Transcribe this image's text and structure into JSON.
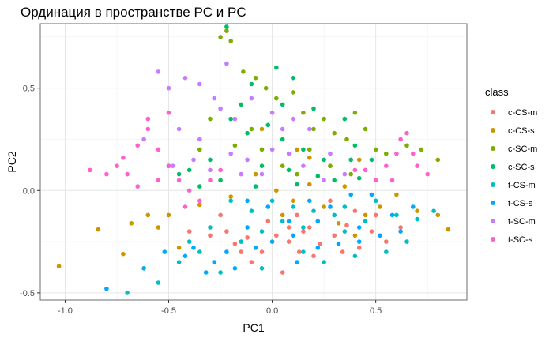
{
  "chart_data": {
    "type": "scatter",
    "title": "Ординация в пространстве PC и PC",
    "xlabel": "PC1",
    "ylabel": "PC2",
    "xlim": [
      -1.12,
      0.94
    ],
    "ylim": [
      -0.535,
      0.815
    ],
    "x_ticks": [
      -1.0,
      -0.5,
      0.0,
      0.5
    ],
    "y_ticks": [
      -0.5,
      0.0,
      0.5
    ],
    "x_tick_labels": [
      "-1.0",
      "-0.5",
      "0.0",
      "0.5"
    ],
    "y_tick_labels": [
      "-0.5",
      "0.0",
      "0.5"
    ],
    "grid": true,
    "legend": {
      "title": "class",
      "position": "right"
    },
    "series": [
      {
        "name": "c-CS-m",
        "color": "#F8766D",
        "points": [
          [
            -0.22,
            -0.2
          ],
          [
            -0.18,
            -0.26
          ],
          [
            -0.12,
            -0.23
          ],
          [
            -0.05,
            -0.3
          ],
          [
            0.02,
            -0.22
          ],
          [
            0.08,
            -0.25
          ],
          [
            0.13,
            -0.3
          ],
          [
            0.18,
            -0.18
          ],
          [
            0.23,
            -0.26
          ],
          [
            0.3,
            -0.22
          ],
          [
            0.36,
            -0.17
          ],
          [
            0.42,
            -0.28
          ],
          [
            0.48,
            -0.2
          ],
          [
            0.55,
            -0.25
          ],
          [
            0.62,
            -0.18
          ],
          [
            -0.3,
            -0.22
          ],
          [
            -0.1,
            -0.35
          ],
          [
            0.05,
            -0.4
          ],
          [
            0.12,
            -0.12
          ],
          [
            0.2,
            -0.32
          ],
          [
            0.28,
            -0.05
          ],
          [
            0.4,
            -0.1
          ],
          [
            -0.4,
            -0.2
          ],
          [
            -0.02,
            -0.15
          ],
          [
            0.15,
            -0.2
          ],
          [
            0.34,
            -0.3
          ],
          [
            -0.25,
            -0.12
          ],
          [
            0.5,
            -0.12
          ],
          [
            0.08,
            -0.18
          ],
          [
            -0.15,
            -0.3
          ]
        ]
      },
      {
        "name": "c-CS-s",
        "color": "#CD9600",
        "points": [
          [
            -1.03,
            -0.37
          ],
          [
            -0.84,
            -0.19
          ],
          [
            -0.72,
            -0.31
          ],
          [
            -0.68,
            -0.16
          ],
          [
            -0.55,
            -0.18
          ],
          [
            -0.5,
            -0.12
          ],
          [
            -0.45,
            -0.28
          ],
          [
            -0.35,
            -0.07
          ],
          [
            -0.2,
            -0.03
          ],
          [
            -0.08,
            0.08
          ],
          [
            0.02,
            0.0
          ],
          [
            0.1,
            -0.05
          ],
          [
            0.18,
            0.03
          ],
          [
            0.25,
            -0.08
          ],
          [
            0.32,
            -0.16
          ],
          [
            0.4,
            -0.22
          ],
          [
            0.45,
            -0.12
          ],
          [
            0.52,
            -0.08
          ],
          [
            0.6,
            -0.02
          ],
          [
            0.7,
            -0.1
          ],
          [
            0.85,
            -0.19
          ],
          [
            0.8,
            -0.12
          ],
          [
            0.28,
            0.12
          ],
          [
            0.12,
            0.2
          ],
          [
            -0.05,
            0.3
          ],
          [
            0.42,
            0.15
          ],
          [
            0.18,
            0.16
          ],
          [
            -0.6,
            -0.12
          ],
          [
            0.35,
            0.02
          ],
          [
            0.05,
            -0.12
          ]
        ]
      },
      {
        "name": "c-SC-m",
        "color": "#7CAE00",
        "points": [
          [
            -0.22,
            0.78
          ],
          [
            -0.25,
            0.75
          ],
          [
            -0.2,
            0.73
          ],
          [
            -0.14,
            0.58
          ],
          [
            -0.08,
            0.55
          ],
          [
            -0.03,
            0.5
          ],
          [
            0.02,
            0.45
          ],
          [
            0.1,
            0.48
          ],
          [
            0.15,
            0.38
          ],
          [
            0.2,
            0.3
          ],
          [
            0.25,
            0.35
          ],
          [
            0.3,
            0.28
          ],
          [
            0.36,
            0.25
          ],
          [
            0.4,
            0.38
          ],
          [
            0.45,
            0.3
          ],
          [
            0.5,
            0.2
          ],
          [
            0.55,
            0.18
          ],
          [
            0.65,
            0.22
          ],
          [
            0.72,
            0.2
          ],
          [
            0.8,
            0.15
          ],
          [
            -0.3,
            0.35
          ],
          [
            -0.35,
            0.2
          ],
          [
            -0.1,
            0.3
          ],
          [
            0.05,
            0.12
          ],
          [
            0.12,
            0.08
          ],
          [
            -0.18,
            0.22
          ],
          [
            0.28,
            0.12
          ],
          [
            0.38,
            0.08
          ],
          [
            -0.05,
            0.2
          ],
          [
            0.18,
            0.2
          ]
        ]
      },
      {
        "name": "c-SC-s",
        "color": "#00BE67",
        "points": [
          [
            -0.22,
            0.8
          ],
          [
            0.02,
            0.6
          ],
          [
            0.1,
            0.55
          ],
          [
            -0.1,
            0.52
          ],
          [
            -0.2,
            0.35
          ],
          [
            -0.12,
            0.28
          ],
          [
            0.05,
            0.25
          ],
          [
            0.15,
            0.2
          ],
          [
            -0.3,
            0.15
          ],
          [
            -0.4,
            0.1
          ],
          [
            -0.5,
            0.12
          ],
          [
            -0.25,
            0.05
          ],
          [
            -0.05,
            0.12
          ],
          [
            0.08,
            0.1
          ],
          [
            0.25,
            0.15
          ],
          [
            0.35,
            0.35
          ],
          [
            0.4,
            0.22
          ],
          [
            0.48,
            0.15
          ],
          [
            -0.15,
            0.42
          ],
          [
            0.2,
            0.4
          ],
          [
            -0.35,
            0.02
          ],
          [
            0.12,
            0.03
          ],
          [
            -0.02,
            0.32
          ],
          [
            0.3,
            0.05
          ],
          [
            -0.45,
            0.08
          ],
          [
            0.42,
            0.06
          ],
          [
            0.22,
            0.07
          ],
          [
            -0.08,
            0.02
          ],
          [
            0.05,
            0.42
          ],
          [
            0.38,
            0.15
          ]
        ]
      },
      {
        "name": "t-CS-m",
        "color": "#00BFC4",
        "points": [
          [
            -0.7,
            -0.5
          ],
          [
            -0.55,
            -0.45
          ],
          [
            -0.45,
            -0.35
          ],
          [
            -0.35,
            -0.3
          ],
          [
            -0.25,
            -0.4
          ],
          [
            -0.15,
            -0.25
          ],
          [
            -0.05,
            -0.2
          ],
          [
            0.05,
            -0.15
          ],
          [
            0.15,
            -0.3
          ],
          [
            0.25,
            -0.35
          ],
          [
            0.35,
            -0.2
          ],
          [
            0.45,
            -0.15
          ],
          [
            0.55,
            -0.3
          ],
          [
            0.65,
            -0.25
          ],
          [
            0.78,
            -0.1
          ],
          [
            0.6,
            -0.12
          ],
          [
            0.4,
            -0.32
          ],
          [
            0.2,
            -0.1
          ],
          [
            0.0,
            -0.05
          ],
          [
            -0.1,
            -0.1
          ],
          [
            -0.2,
            -0.05
          ],
          [
            0.1,
            -0.08
          ],
          [
            0.3,
            -0.12
          ],
          [
            0.5,
            -0.05
          ],
          [
            -0.3,
            -0.18
          ],
          [
            -0.4,
            -0.25
          ],
          [
            0.7,
            -0.14
          ],
          [
            0.35,
            -0.08
          ],
          [
            0.15,
            -0.18
          ],
          [
            -0.05,
            -0.38
          ]
        ]
      },
      {
        "name": "t-CS-s",
        "color": "#00A9FF",
        "points": [
          [
            -0.8,
            -0.48
          ],
          [
            -0.62,
            -0.38
          ],
          [
            -0.52,
            -0.3
          ],
          [
            -0.42,
            -0.32
          ],
          [
            -0.32,
            -0.4
          ],
          [
            -0.22,
            -0.3
          ],
          [
            -0.12,
            -0.18
          ],
          [
            0.0,
            -0.25
          ],
          [
            0.1,
            -0.22
          ],
          [
            0.22,
            -0.28
          ],
          [
            0.32,
            -0.26
          ],
          [
            0.42,
            -0.18
          ],
          [
            0.52,
            -0.22
          ],
          [
            0.62,
            -0.2
          ],
          [
            0.68,
            -0.08
          ],
          [
            0.48,
            -0.02
          ],
          [
            0.38,
            -0.02
          ],
          [
            0.28,
            -0.08
          ],
          [
            0.18,
            -0.05
          ],
          [
            0.08,
            -0.15
          ],
          [
            -0.02,
            -0.08
          ],
          [
            -0.12,
            -0.05
          ],
          [
            -0.28,
            -0.35
          ],
          [
            -0.38,
            -0.28
          ],
          [
            0.12,
            -0.35
          ],
          [
            -0.18,
            -0.38
          ],
          [
            0.58,
            -0.12
          ],
          [
            0.42,
            -0.25
          ],
          [
            -0.08,
            -0.28
          ],
          [
            0.22,
            -0.15
          ]
        ]
      },
      {
        "name": "t-SC-m",
        "color": "#C77CFF",
        "points": [
          [
            -0.55,
            0.58
          ],
          [
            -0.5,
            0.5
          ],
          [
            -0.42,
            0.55
          ],
          [
            -0.35,
            0.52
          ],
          [
            -0.28,
            0.45
          ],
          [
            -0.22,
            0.62
          ],
          [
            -0.25,
            0.4
          ],
          [
            -0.18,
            0.35
          ],
          [
            -0.1,
            0.45
          ],
          [
            0.0,
            0.38
          ],
          [
            0.05,
            0.3
          ],
          [
            0.08,
            0.18
          ],
          [
            0.15,
            0.12
          ],
          [
            0.25,
            0.05
          ],
          [
            0.35,
            0.08
          ],
          [
            -0.45,
            0.3
          ],
          [
            -0.55,
            0.2
          ],
          [
            -0.38,
            0.15
          ],
          [
            -0.3,
            0.1
          ],
          [
            -0.2,
            0.18
          ],
          [
            -0.15,
            0.08
          ],
          [
            -0.05,
            0.08
          ],
          [
            0.0,
            0.2
          ],
          [
            0.18,
            0.3
          ],
          [
            -0.62,
            0.25
          ],
          [
            -0.48,
            0.12
          ],
          [
            0.1,
            0.35
          ],
          [
            -0.35,
            0.25
          ],
          [
            0.28,
            0.18
          ],
          [
            -0.12,
            0.15
          ]
        ]
      },
      {
        "name": "t-SC-s",
        "color": "#FF61CC",
        "points": [
          [
            -0.88,
            0.1
          ],
          [
            -0.8,
            0.08
          ],
          [
            -0.72,
            0.16
          ],
          [
            -0.65,
            0.22
          ],
          [
            -0.6,
            0.3
          ],
          [
            -0.55,
            0.2
          ],
          [
            -0.5,
            0.12
          ],
          [
            -0.45,
            0.05
          ],
          [
            -0.4,
            0.0
          ],
          [
            -0.35,
            -0.05
          ],
          [
            -0.3,
            0.05
          ],
          [
            -0.25,
            0.1
          ],
          [
            -0.6,
            0.35
          ],
          [
            -0.5,
            0.38
          ],
          [
            0.45,
            0.1
          ],
          [
            0.55,
            0.12
          ],
          [
            0.6,
            0.18
          ],
          [
            0.65,
            0.28
          ],
          [
            0.7,
            0.12
          ],
          [
            0.75,
            0.08
          ],
          [
            0.5,
            0.05
          ],
          [
            0.4,
            0.1
          ],
          [
            0.58,
            0.05
          ],
          [
            -0.7,
            0.08
          ],
          [
            -0.65,
            0.02
          ],
          [
            -0.55,
            0.05
          ],
          [
            -0.42,
            -0.08
          ],
          [
            0.62,
            0.25
          ],
          [
            0.68,
            0.18
          ],
          [
            -0.75,
            0.12
          ]
        ]
      }
    ]
  }
}
